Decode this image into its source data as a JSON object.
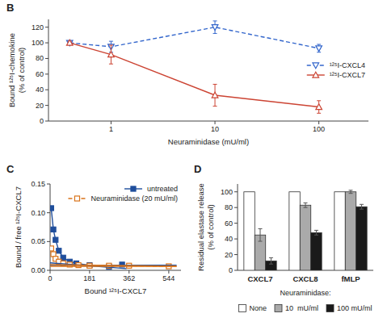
{
  "chart_data": [
    {
      "type": "line",
      "title": "B",
      "x": [
        0.4,
        1,
        10,
        100
      ],
      "xlabel": "Neuraminidase (mU/ml)",
      "ylabel": "Bound ¹²⁵I-chemokine\n(% of control)",
      "log": "x",
      "xlim": [
        0.25,
        300
      ],
      "xticks": [
        1,
        10,
        100
      ],
      "ylim": [
        0,
        130
      ],
      "yticks": [
        0,
        20,
        40,
        60,
        80,
        100,
        120
      ],
      "legend": "right",
      "series": [
        {
          "name": "¹²⁵I-CXCL4",
          "values": [
            100,
            95,
            120,
            93
          ],
          "errors": [
            2,
            7,
            8,
            5
          ],
          "marker": "triangle-down-open",
          "line_style": "dashed"
        },
        {
          "name": "¹²⁵I-CXCL7",
          "values": [
            100,
            85,
            33,
            18
          ],
          "errors": [
            2,
            12,
            14,
            8
          ],
          "marker": "triangle-up-open",
          "line_style": "solid"
        }
      ]
    },
    {
      "type": "line",
      "title": "C",
      "xlabel": "Bound ¹²⁵I-CXCL7",
      "ylabel": "Bound / free ¹²⁵I-CXCL7",
      "xlim": [
        0,
        600
      ],
      "xticks": [
        0,
        181,
        362,
        544
      ],
      "ylim": [
        0.0,
        0.15
      ],
      "yticks": [
        {
          "value": 0,
          "label": "0.00"
        },
        0.05,
        {
          "value": 0.1,
          "label": "0.10"
        },
        0.15
      ],
      "legend": "upper right",
      "series": [
        {
          "name": "untreated",
          "color": "#1f4e9c",
          "x": [
            5,
            15,
            25,
            40,
            60,
            90,
            120,
            181,
            270,
            330
          ],
          "values": [
            0.108,
            0.071,
            0.053,
            0.034,
            0.022,
            0.015,
            0.012,
            0.009,
            0.006,
            0.01
          ],
          "marker": "square",
          "line_style": "solid"
        },
        {
          "name": "Neuraminidase (20 mU/ml)",
          "color": "#d9731a",
          "x": [
            5,
            15,
            25,
            40,
            60,
            90,
            130,
            181,
            270,
            362,
            544
          ],
          "values": [
            0.038,
            0.028,
            0.02,
            0.015,
            0.012,
            0.01,
            0.009,
            0.008,
            0.008,
            0.008,
            0.007
          ],
          "marker": "square-open",
          "line_style": "dashed"
        },
        {
          "color": "#1f4e9c",
          "x": [
            0,
            350
          ],
          "values": [
            0.013,
            0.003
          ],
          "line_style": "solid"
        },
        {
          "color": "#1f4e9c",
          "x": [
            0,
            580
          ],
          "values": [
            0.009,
            0.009
          ],
          "line_style": "solid"
        },
        {
          "color": "#d9731a",
          "x": [
            0,
            580
          ],
          "values": [
            0.01,
            0.007
          ],
          "line_style": "solid"
        },
        {
          "color": "#d9731a",
          "x": [
            0,
            580
          ],
          "values": [
            0.007,
            0.007
          ],
          "line_style": "solid"
        }
      ]
    },
    {
      "type": "bar",
      "title": "D",
      "categories": [
        "CXCL7",
        "CXCL8",
        "fMLP"
      ],
      "ylabel": "Residual elastase release\n(% of control)",
      "ylim": [
        0,
        110
      ],
      "yticks": [
        0,
        20,
        40,
        60,
        80,
        100
      ],
      "legend": "bottom",
      "legend_title": "Neuraminidase:",
      "series": [
        {
          "name": "None",
          "color": "#ffffff",
          "values": [
            100,
            100,
            100
          ]
        },
        {
          "name": "10  mU/ml",
          "color": "#aaaaaa",
          "values": [
            45,
            83,
            100
          ],
          "errors": [
            8,
            3,
            2
          ]
        },
        {
          "name": "100 mU/ml",
          "color": "#1a1a1a",
          "values": [
            12,
            48,
            81
          ],
          "errors": [
            4,
            3,
            3
          ]
        }
      ]
    }
  ]
}
